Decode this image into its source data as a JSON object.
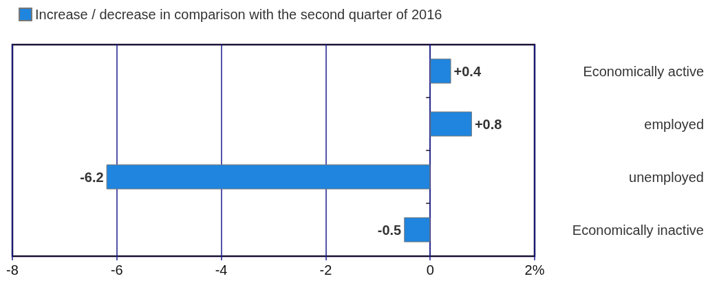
{
  "chart_data": {
    "type": "bar",
    "orientation": "horizontal",
    "categories": [
      "Economically active",
      "employed",
      "unemployed",
      "Economically inactive"
    ],
    "series": [
      {
        "name": "Increase / decrease in comparison with the second quarter of 2016",
        "color": "#1f85de",
        "values": [
          0.4,
          0.8,
          -6.2,
          -0.5
        ],
        "value_labels": [
          "+0.4",
          "+0.8",
          "-6.2",
          "-0.5"
        ]
      }
    ],
    "xlim": [
      -8,
      2
    ],
    "xticks": [
      -8,
      -6,
      -4,
      -2,
      0,
      {
        "value": 2,
        "label": "2%"
      }
    ],
    "grid": "x",
    "legend": "top left"
  }
}
